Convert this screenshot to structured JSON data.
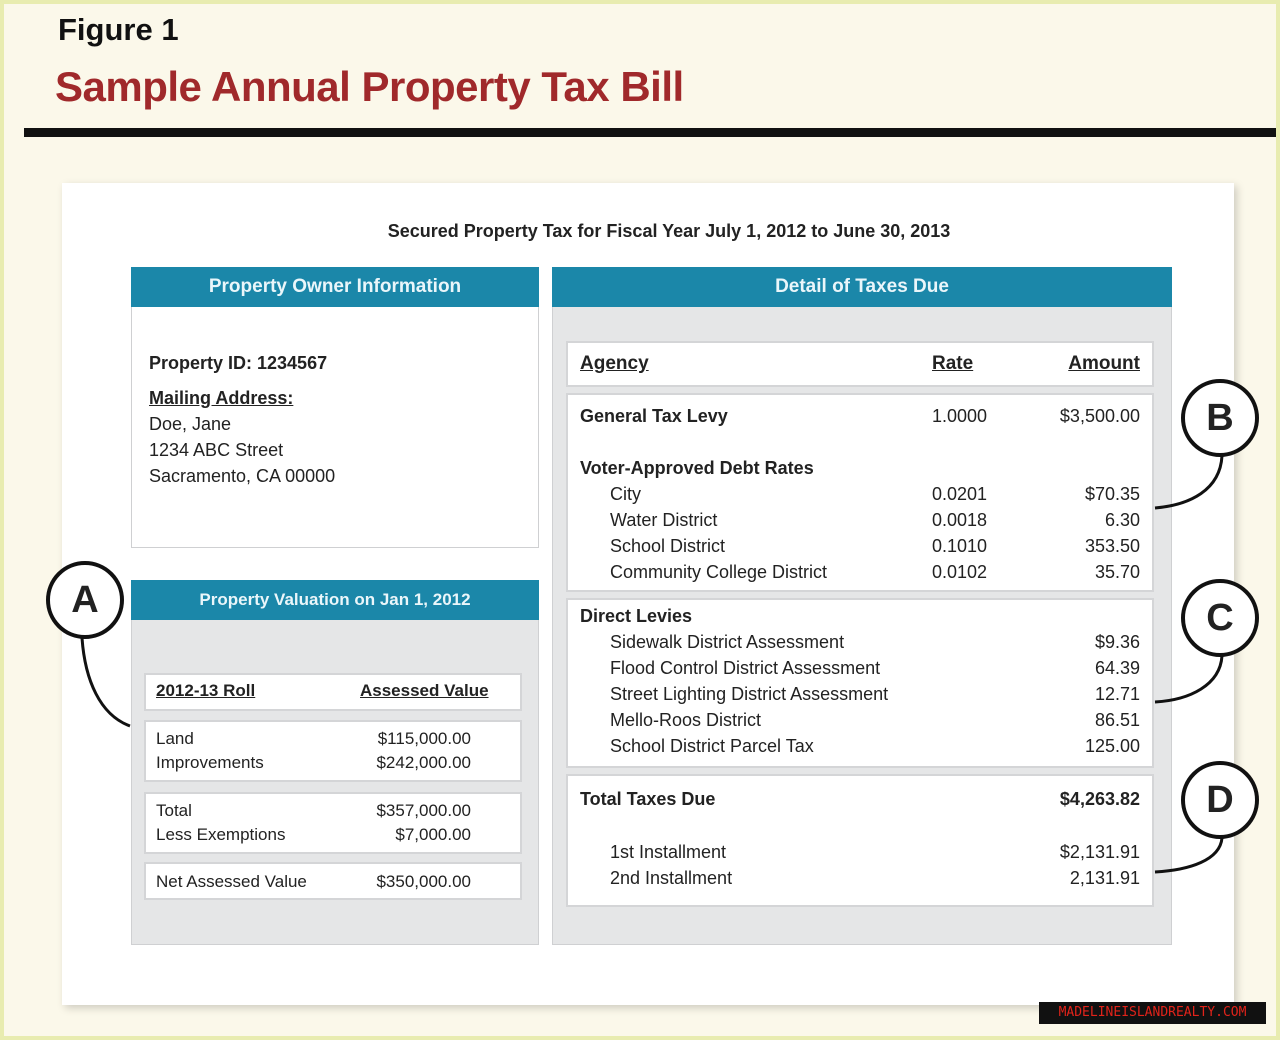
{
  "figure_label": "Figure 1",
  "title": "Sample Annual Property Tax Bill",
  "subtitle": "Secured Property Tax for Fiscal Year July 1, 2012 to June 30, 2013",
  "owner": {
    "header": "Property Owner Information",
    "property_id": "Property ID: 1234567",
    "mailing_label": "Mailing Address:",
    "name": "Doe, Jane",
    "street": "1234 ABC Street",
    "city": "Sacramento, CA 00000"
  },
  "valuation": {
    "header": "Property Valuation on Jan 1, 2012",
    "col1": "2012-13 Roll",
    "col2": "Assessed Value",
    "rows": [
      {
        "label": "Land",
        "value": "$115,000.00"
      },
      {
        "label": "Improvements",
        "value": "$242,000.00"
      },
      {
        "label": "Total",
        "value": "$357,000.00"
      },
      {
        "label": "Less Exemptions",
        "value": "$7,000.00"
      },
      {
        "label": "Net Assessed Value",
        "value": "$350,000.00"
      }
    ]
  },
  "taxes": {
    "header": "Detail of Taxes Due",
    "col_agency": "Agency",
    "col_rate": "Rate",
    "col_amount": "Amount",
    "general": {
      "label": "General Tax Levy",
      "rate": "1.0000",
      "amount": "$3,500.00"
    },
    "voter_label": "Voter-Approved Debt Rates",
    "voter": [
      {
        "label": "City",
        "rate": "0.0201",
        "amount": "$70.35"
      },
      {
        "label": "Water District",
        "rate": "0.0018",
        "amount": "6.30"
      },
      {
        "label": "School District",
        "rate": "0.1010",
        "amount": "353.50"
      },
      {
        "label": "Community College District",
        "rate": "0.0102",
        "amount": "35.70"
      }
    ],
    "direct_label": "Direct Levies",
    "direct": [
      {
        "label": "Sidewalk District Assessment",
        "amount": "$9.36"
      },
      {
        "label": "Flood Control District Assessment",
        "amount": "64.39"
      },
      {
        "label": "Street Lighting District Assessment",
        "amount": "12.71"
      },
      {
        "label": "Mello-Roos District",
        "amount": "86.51"
      },
      {
        "label": "School District Parcel Tax",
        "amount": "125.00"
      }
    ],
    "total_label": "Total Taxes Due",
    "total": "$4,263.82",
    "inst1_label": "1st Installment",
    "inst1": "$2,131.91",
    "inst2_label": "2nd Installment",
    "inst2": "2,131.91"
  },
  "callouts": {
    "a": "A",
    "b": "B",
    "c": "C",
    "d": "D"
  },
  "watermark": "MADELINEISLANDREALTY.COM",
  "colors": {
    "header_teal": "#1b87a9",
    "title_red": "#a0292b"
  }
}
